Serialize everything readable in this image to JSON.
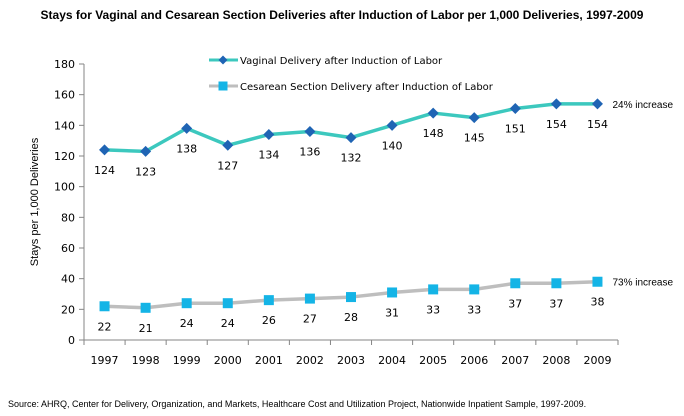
{
  "chart_data": {
    "type": "line",
    "title": "Stays for Vaginal and Cesarean Section Deliveries after Induction of Labor per 1,000  Deliveries, 1997-2009",
    "xlabel": "",
    "ylabel": "Stays per 1,000 Deliveries",
    "categories": [
      "1997",
      "1998",
      "1999",
      "2000",
      "2001",
      "2002",
      "2003",
      "2004",
      "2005",
      "2006",
      "2007",
      "2008",
      "2009"
    ],
    "ylim": [
      0,
      180
    ],
    "yticks": [
      0,
      20,
      40,
      60,
      80,
      100,
      120,
      140,
      160,
      180
    ],
    "grid": false,
    "legend_position": "top-center",
    "series": [
      {
        "name": "Vaginal Delivery after Induction of Labor",
        "values": [
          124,
          123,
          138,
          127,
          134,
          136,
          132,
          140,
          148,
          145,
          151,
          154,
          154
        ],
        "labels": [
          "124",
          "123",
          "138",
          "127",
          "134",
          "136",
          "132",
          "140",
          "148",
          "145",
          "151",
          "154",
          "154"
        ],
        "line_color": "#3cc8be",
        "marker": "diamond",
        "marker_color": "#1f64b4",
        "annotation": "24% increase"
      },
      {
        "name": "Cesarean Section Delivery after Induction of Labor",
        "values": [
          22,
          21,
          24,
          24,
          26,
          27,
          28,
          31,
          33,
          33,
          37,
          37,
          38
        ],
        "labels": [
          "22",
          "21",
          "24",
          "24",
          "26",
          "27",
          "28",
          "31",
          "33",
          "33",
          "37",
          "37",
          "38"
        ],
        "line_color": "#bebebe",
        "marker": "square",
        "marker_color": "#14b4e6",
        "annotation": "73% increase"
      }
    ],
    "source": "Source: AHRQ, Center for Delivery, Organization, and Markets, Healthcare Cost and Utilization Project, Nationwide Inpatient Sample, 1997-2009."
  }
}
